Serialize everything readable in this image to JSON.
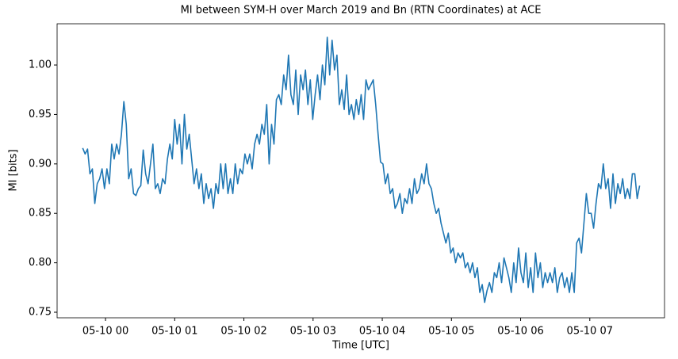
{
  "chart_data": {
    "type": "line",
    "title": "MI between SYM-H over March 2019 and Bn (RTN Coordinates) at ACE",
    "xlabel": "Time [UTC]",
    "ylabel": "MI [bits]",
    "color": "#1f77b4",
    "grid": false,
    "xlim": [
      -0.7,
      8.08
    ],
    "ylim": [
      0.7444,
      1.0417
    ],
    "xticks": [
      {
        "value": 0,
        "label": "05-10 00"
      },
      {
        "value": 1,
        "label": "05-10 01"
      },
      {
        "value": 2,
        "label": "05-10 02"
      },
      {
        "value": 3,
        "label": "05-10 03"
      },
      {
        "value": 4,
        "label": "05-10 04"
      },
      {
        "value": 5,
        "label": "05-10 05"
      },
      {
        "value": 6,
        "label": "05-10 06"
      },
      {
        "value": 7,
        "label": "05-10 07"
      }
    ],
    "yticks": [
      0.75,
      {
        "value": 0.8,
        "label": "0.80"
      },
      0.85,
      {
        "value": 0.9,
        "label": "0.90"
      },
      0.95,
      {
        "value": 1.0,
        "label": "1.00"
      }
    ],
    "x": [
      -0.33,
      -0.295,
      -0.26,
      -0.225,
      -0.19,
      -0.155,
      -0.12,
      -0.085,
      -0.05,
      -0.015,
      0.02,
      0.055,
      0.09,
      0.125,
      0.16,
      0.195,
      0.23,
      0.265,
      0.3,
      0.335,
      0.37,
      0.405,
      0.44,
      0.475,
      0.51,
      0.545,
      0.58,
      0.615,
      0.65,
      0.685,
      0.72,
      0.755,
      0.79,
      0.825,
      0.86,
      0.895,
      0.93,
      0.965,
      1.0,
      1.035,
      1.07,
      1.105,
      1.14,
      1.175,
      1.21,
      1.245,
      1.28,
      1.315,
      1.35,
      1.385,
      1.42,
      1.455,
      1.49,
      1.525,
      1.56,
      1.595,
      1.63,
      1.665,
      1.7,
      1.735,
      1.77,
      1.805,
      1.84,
      1.875,
      1.91,
      1.945,
      1.98,
      2.015,
      2.05,
      2.085,
      2.12,
      2.155,
      2.19,
      2.225,
      2.26,
      2.295,
      2.33,
      2.365,
      2.4,
      2.435,
      2.47,
      2.505,
      2.54,
      2.575,
      2.61,
      2.645,
      2.68,
      2.715,
      2.75,
      2.785,
      2.82,
      2.855,
      2.89,
      2.925,
      2.96,
      2.995,
      3.03,
      3.065,
      3.1,
      3.135,
      3.17,
      3.205,
      3.24,
      3.275,
      3.31,
      3.345,
      3.38,
      3.415,
      3.45,
      3.485,
      3.52,
      3.555,
      3.59,
      3.625,
      3.66,
      3.695,
      3.73,
      3.765,
      3.8,
      3.835,
      3.87,
      3.905,
      3.94,
      3.975,
      4.01,
      4.045,
      4.08,
      4.115,
      4.15,
      4.185,
      4.22,
      4.255,
      4.29,
      4.325,
      4.36,
      4.395,
      4.43,
      4.465,
      4.5,
      4.535,
      4.57,
      4.605,
      4.64,
      4.675,
      4.71,
      4.745,
      4.78,
      4.815,
      4.85,
      4.885,
      4.92,
      4.955,
      4.99,
      5.025,
      5.06,
      5.095,
      5.13,
      5.165,
      5.2,
      5.235,
      5.27,
      5.305,
      5.34,
      5.375,
      5.41,
      5.445,
      5.48,
      5.515,
      5.55,
      5.585,
      5.62,
      5.655,
      5.69,
      5.725,
      5.76,
      5.795,
      5.83,
      5.865,
      5.9,
      5.935,
      5.97,
      6.005,
      6.04,
      6.075,
      6.11,
      6.145,
      6.18,
      6.215,
      6.25,
      6.285,
      6.32,
      6.355,
      6.39,
      6.425,
      6.46,
      6.495,
      6.53,
      6.565,
      6.6,
      6.635,
      6.67,
      6.705,
      6.74,
      6.775,
      6.81,
      6.845,
      6.88,
      6.915,
      6.95,
      6.985,
      7.02,
      7.055,
      7.09,
      7.125,
      7.16,
      7.195,
      7.23,
      7.265,
      7.3,
      7.335,
      7.37,
      7.405,
      7.44,
      7.475,
      7.51,
      7.545,
      7.58,
      7.615,
      7.65,
      7.685,
      7.72
    ],
    "values": [
      0.916,
      0.91,
      0.915,
      0.89,
      0.895,
      0.86,
      0.88,
      0.885,
      0.895,
      0.875,
      0.895,
      0.88,
      0.92,
      0.905,
      0.92,
      0.91,
      0.93,
      0.963,
      0.94,
      0.885,
      0.895,
      0.87,
      0.868,
      0.875,
      0.878,
      0.914,
      0.89,
      0.88,
      0.9,
      0.92,
      0.875,
      0.88,
      0.87,
      0.885,
      0.88,
      0.905,
      0.92,
      0.905,
      0.945,
      0.92,
      0.94,
      0.9,
      0.95,
      0.915,
      0.93,
      0.905,
      0.88,
      0.895,
      0.875,
      0.89,
      0.86,
      0.88,
      0.865,
      0.875,
      0.855,
      0.88,
      0.87,
      0.9,
      0.875,
      0.9,
      0.87,
      0.885,
      0.87,
      0.9,
      0.88,
      0.895,
      0.89,
      0.91,
      0.9,
      0.91,
      0.895,
      0.92,
      0.93,
      0.92,
      0.94,
      0.93,
      0.96,
      0.9,
      0.94,
      0.92,
      0.965,
      0.97,
      0.96,
      0.99,
      0.975,
      1.01,
      0.97,
      0.96,
      0.995,
      0.95,
      0.99,
      0.975,
      0.995,
      0.96,
      0.985,
      0.945,
      0.97,
      0.99,
      0.965,
      1.0,
      0.98,
      1.028,
      0.99,
      1.025,
      0.995,
      1.01,
      0.96,
      0.975,
      0.955,
      0.99,
      0.95,
      0.96,
      0.945,
      0.965,
      0.95,
      0.97,
      0.945,
      0.985,
      0.975,
      0.98,
      0.985,
      0.96,
      0.93,
      0.902,
      0.9,
      0.88,
      0.89,
      0.87,
      0.875,
      0.855,
      0.86,
      0.87,
      0.85,
      0.865,
      0.86,
      0.875,
      0.86,
      0.885,
      0.87,
      0.875,
      0.89,
      0.88,
      0.9,
      0.88,
      0.875,
      0.86,
      0.85,
      0.855,
      0.84,
      0.83,
      0.82,
      0.83,
      0.81,
      0.815,
      0.8,
      0.81,
      0.805,
      0.81,
      0.795,
      0.8,
      0.79,
      0.8,
      0.785,
      0.795,
      0.77,
      0.778,
      0.76,
      0.772,
      0.78,
      0.77,
      0.79,
      0.785,
      0.8,
      0.78,
      0.805,
      0.795,
      0.785,
      0.77,
      0.8,
      0.78,
      0.815,
      0.79,
      0.78,
      0.81,
      0.775,
      0.795,
      0.77,
      0.81,
      0.785,
      0.8,
      0.775,
      0.79,
      0.78,
      0.79,
      0.78,
      0.795,
      0.77,
      0.785,
      0.79,
      0.775,
      0.785,
      0.77,
      0.79,
      0.77,
      0.82,
      0.825,
      0.81,
      0.84,
      0.87,
      0.85,
      0.85,
      0.835,
      0.86,
      0.88,
      0.875,
      0.9,
      0.875,
      0.885,
      0.855,
      0.89,
      0.86,
      0.88,
      0.87,
      0.885,
      0.865,
      0.875,
      0.865,
      0.89,
      0.89,
      0.865,
      0.878
    ]
  }
}
